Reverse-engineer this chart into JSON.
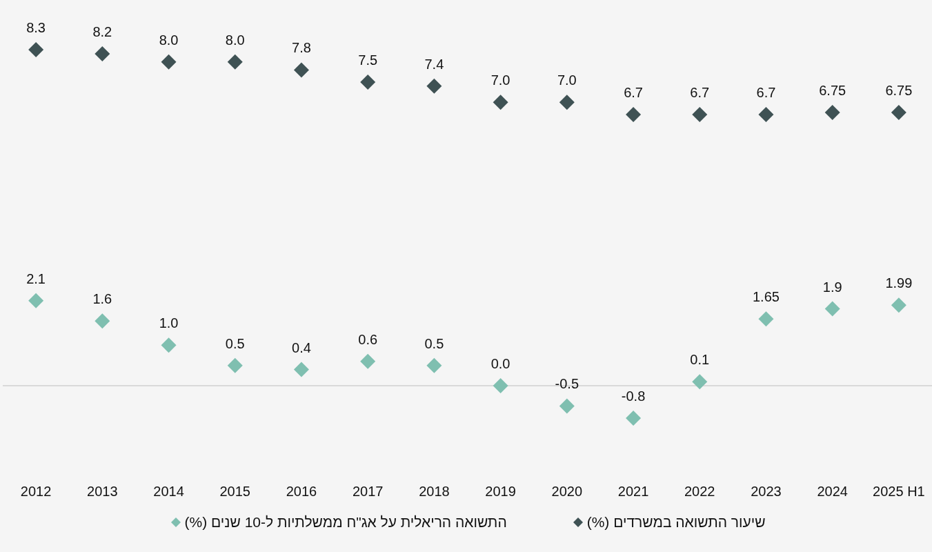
{
  "chart_data": {
    "type": "scatter",
    "categories": [
      "2012",
      "2013",
      "2014",
      "2015",
      "2016",
      "2017",
      "2018",
      "2019",
      "2020",
      "2021",
      "2022",
      "2023",
      "2024",
      "2025 H1"
    ],
    "series": [
      {
        "name": "שיעור התשואה במשרדים (%)",
        "color": "#3f5254",
        "values": [
          8.3,
          8.2,
          8.0,
          8.0,
          7.8,
          7.5,
          7.4,
          7.0,
          7.0,
          6.7,
          6.7,
          6.7,
          6.75,
          6.75
        ],
        "value_labels": [
          "8.3",
          "8.2",
          "8.0",
          "8.0",
          "7.8",
          "7.5",
          "7.4",
          "7.0",
          "7.0",
          "6.7",
          "6.7",
          "6.7",
          "6.75",
          "6.75"
        ]
      },
      {
        "name": "התשואה הריאלית על אג\"ח ממשלתיות ל-10 שנים (%)",
        "color": "#7fbfb0",
        "values": [
          2.1,
          1.6,
          1.0,
          0.5,
          0.4,
          0.6,
          0.5,
          0.0,
          -0.5,
          -0.8,
          0.1,
          1.65,
          1.9,
          1.99
        ],
        "value_labels": [
          "2.1",
          "1.6",
          "1.0",
          "0.5",
          "0.4",
          "0.6",
          "0.5",
          "0.0",
          "-0.5",
          "-0.8",
          "0.1",
          "1.65",
          "1.9",
          "1.99"
        ]
      }
    ],
    "marker": "diamond",
    "grid": false,
    "legend": "bottom",
    "tick_labels": "x",
    "ref_lines": [
      {
        "axis": "y",
        "value": 0,
        "color": "#d9d9d9"
      }
    ]
  }
}
